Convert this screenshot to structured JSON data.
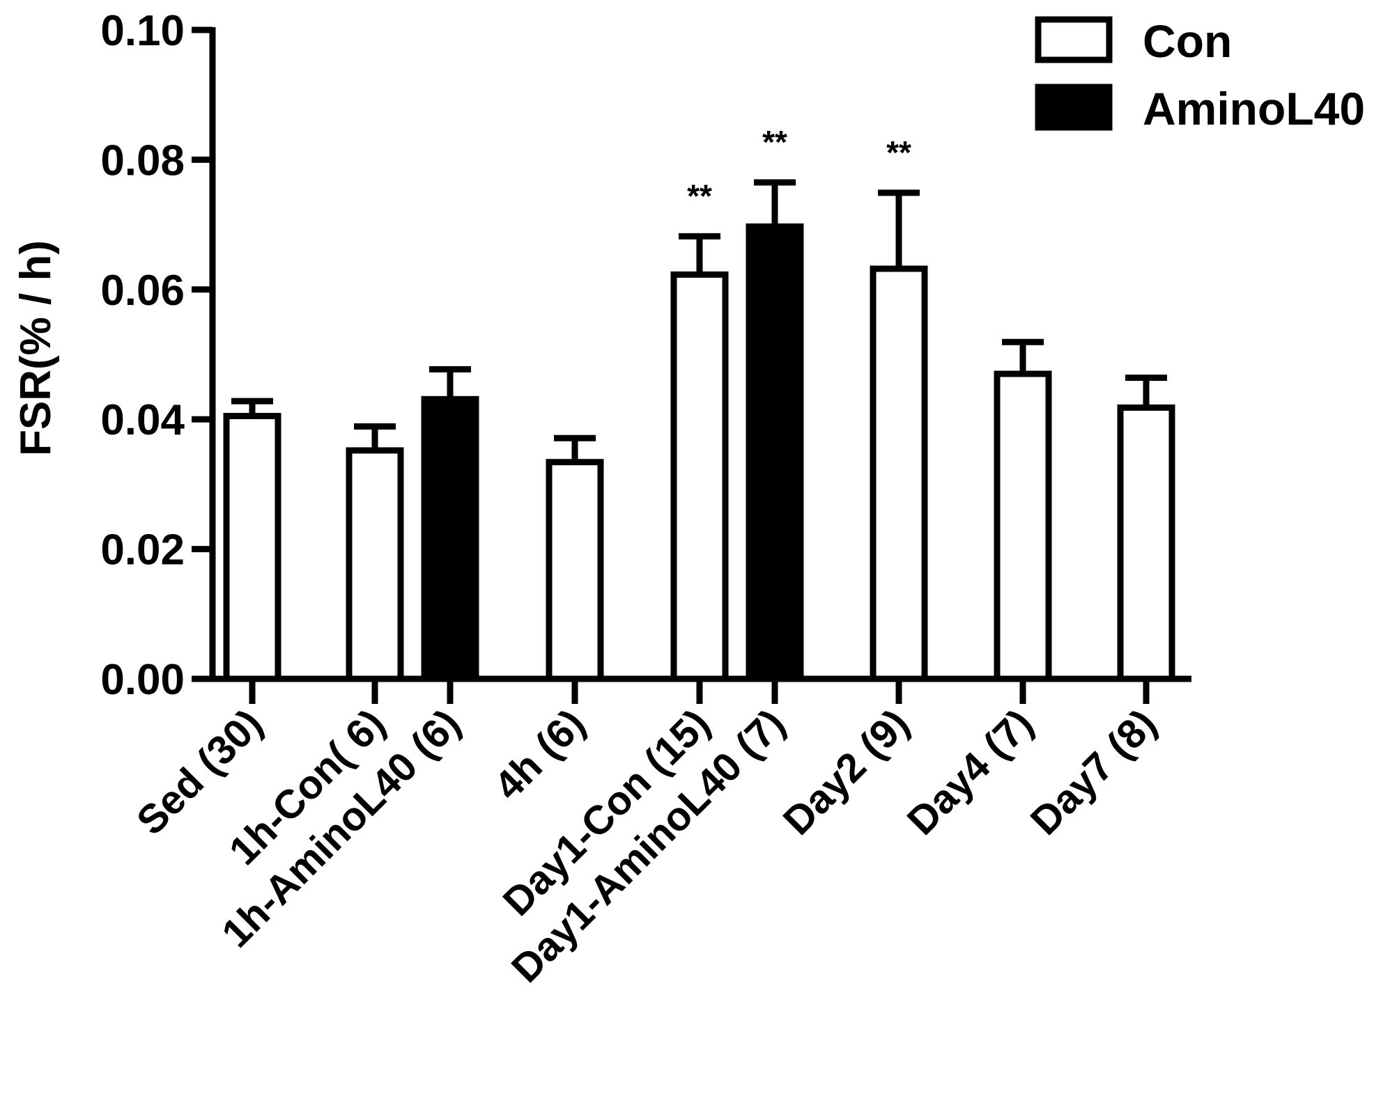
{
  "chart_data": {
    "type": "bar",
    "title": "",
    "xlabel": "",
    "ylabel": "FSR(% / h)",
    "ylim": [
      0,
      0.1
    ],
    "yticks": [
      0.0,
      0.02,
      0.04,
      0.06,
      0.08,
      0.1
    ],
    "ytick_labels": [
      "0.00",
      "0.02",
      "0.04",
      "0.06",
      "0.08",
      "0.10"
    ],
    "legend": {
      "placement": "top-right",
      "entries": [
        {
          "name": "Con",
          "fill": "#ffffff"
        },
        {
          "name": "AminoL40",
          "fill": "#000000"
        }
      ]
    },
    "bars": [
      {
        "label": "Sed (30)",
        "series": "Con",
        "value": 0.0405,
        "error": 0.0023,
        "annotation": ""
      },
      {
        "label": "1h-Con( 6)",
        "series": "Con",
        "value": 0.0352,
        "error": 0.0037,
        "annotation": ""
      },
      {
        "label": "1h-AminoL40 (6)",
        "series": "AminoL40",
        "value": 0.0431,
        "error": 0.0046,
        "annotation": ""
      },
      {
        "label": "4h (6)",
        "series": "Con",
        "value": 0.0334,
        "error": 0.0037,
        "annotation": ""
      },
      {
        "label": "Day1-Con (15)",
        "series": "Con",
        "value": 0.0623,
        "error": 0.0059,
        "annotation": "**"
      },
      {
        "label": "Day1-AminoL40 (7)",
        "series": "AminoL40",
        "value": 0.0697,
        "error": 0.0068,
        "annotation": "**"
      },
      {
        "label": "Day2 (9)",
        "series": "Con",
        "value": 0.0632,
        "error": 0.0117,
        "annotation": "**"
      },
      {
        "label": "Day4 (7)",
        "series": "Con",
        "value": 0.047,
        "error": 0.0049,
        "annotation": ""
      },
      {
        "label": "Day7 (8)",
        "series": "Con",
        "value": 0.0418,
        "error": 0.0046,
        "annotation": ""
      }
    ]
  }
}
